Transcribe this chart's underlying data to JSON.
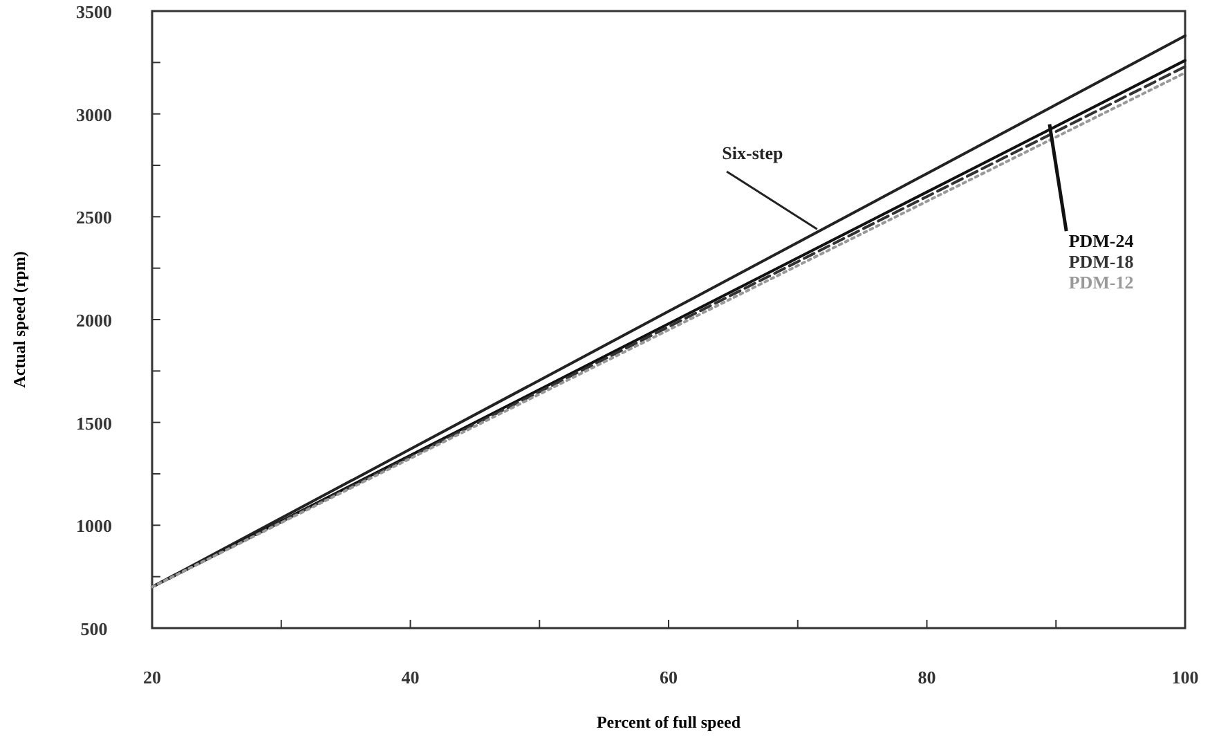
{
  "chart_data": {
    "type": "line",
    "xlabel": "Percent of full speed",
    "ylabel": "Actual speed (rpm)",
    "xlim": [
      20,
      100
    ],
    "ylim": [
      500,
      3500
    ],
    "xticks": [
      20,
      {
        "value": 30,
        "label": null
      },
      40,
      {
        "value": 50,
        "label": null
      },
      60,
      {
        "value": 70,
        "label": null
      },
      80,
      {
        "value": 90,
        "label": null
      },
      100
    ],
    "yticks": [
      500,
      {
        "value": 750,
        "label": null
      },
      1000,
      {
        "value": 1250,
        "label": null
      },
      1500,
      {
        "value": 1750,
        "label": null
      },
      2000,
      {
        "value": 2250,
        "label": null
      },
      2500,
      {
        "value": 2750,
        "label": null
      },
      3000,
      {
        "value": 3250,
        "label": null
      },
      3500
    ],
    "grid": false,
    "marker": "none",
    "series": [
      {
        "name": "Six-step",
        "color": "#222222",
        "line_style": "solid",
        "x": [
          20,
          40,
          60,
          80,
          100
        ],
        "values": [
          700,
          1370,
          2040,
          2710,
          3380
        ]
      },
      {
        "name": "PDM-24",
        "color": "#111111",
        "line_style": "solid",
        "x": [
          20,
          40,
          60,
          80,
          100
        ],
        "values": [
          700,
          1340,
          1980,
          2620,
          3260
        ]
      },
      {
        "name": "PDM-18",
        "color": "#333333",
        "line_style": "dashed",
        "x": [
          20,
          40,
          60,
          80,
          100
        ],
        "values": [
          700,
          1333,
          1965,
          2598,
          3230
        ]
      },
      {
        "name": "PDM-12",
        "color": "#999999",
        "line_style": "dotted",
        "x": [
          20,
          40,
          60,
          80,
          100
        ],
        "values": [
          700,
          1325,
          1950,
          2575,
          3200
        ]
      }
    ]
  }
}
